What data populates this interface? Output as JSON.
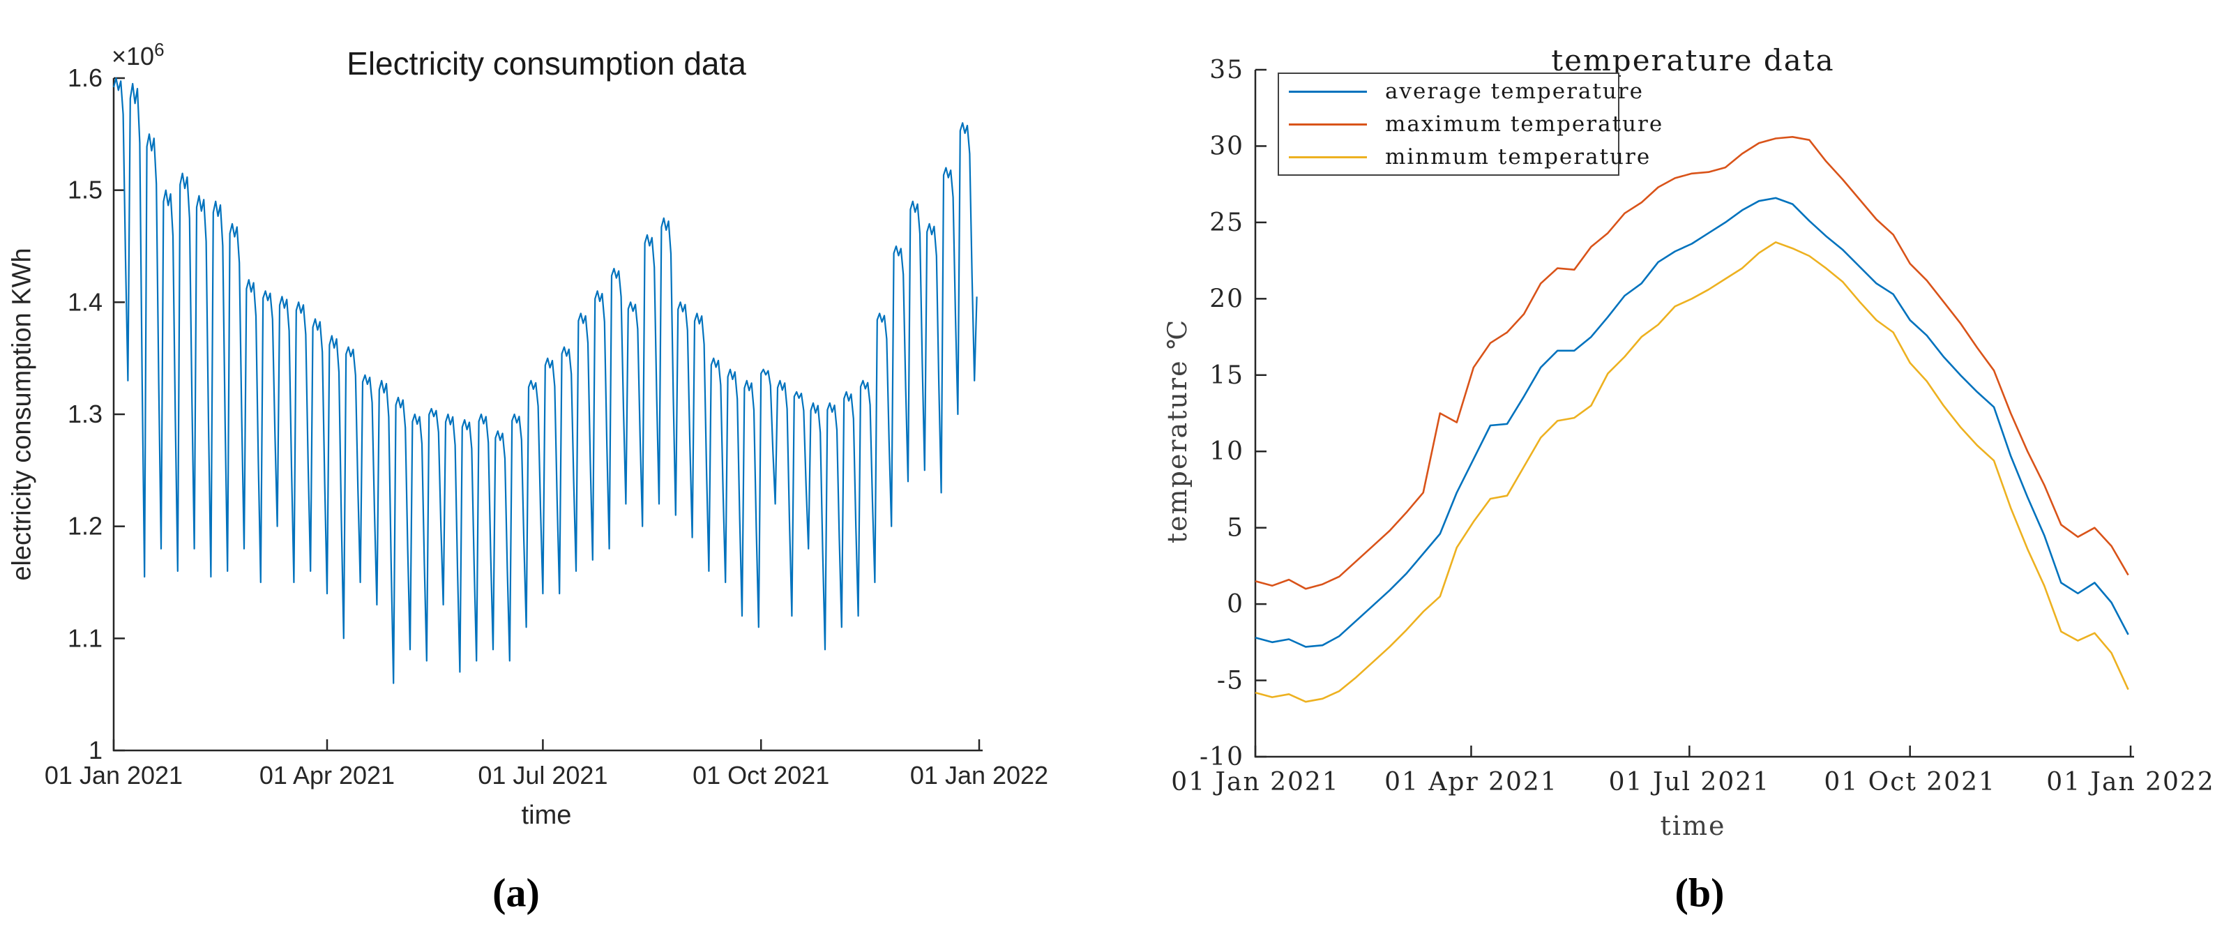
{
  "captions": {
    "a": "(a)",
    "b": "(b)"
  },
  "chart_data": [
    {
      "type": "line",
      "panel": "a",
      "title": "Electricity consumption data",
      "xlabel": "time",
      "ylabel": "electricity consumption KWh",
      "y_multiplier_base": "×10",
      "y_multiplier_exp": "6",
      "x_tick_labels": [
        "01 Jan 2021",
        "01 Apr 2021",
        "01 Jul 2021",
        "01 Oct 2021",
        "01 Jan 2022"
      ],
      "x_tick_days": [
        0,
        90,
        181,
        273,
        365
      ],
      "x_range_days": 365,
      "y_ticks": [
        1,
        1.1,
        1.2,
        1.3,
        1.4,
        1.5,
        1.6
      ],
      "y_tick_labels": [
        "1",
        "1.1",
        "1.2",
        "1.3",
        "1.4",
        "1.5",
        "1.6"
      ],
      "ylim": [
        1.0,
        1.6
      ],
      "y_unit_scale": "1e6 KWh",
      "grid": false,
      "legend": false,
      "axis_color": "#262626",
      "series": [
        {
          "name": "electricity consumption",
          "color": "#0072BD",
          "sampling": "daily, expanded from weekly weekday-peak / weekend-dip pattern",
          "intraweek_profile": [
            0.97,
            1.0,
            0.96,
            0.99,
            0.88,
            0.4,
            0.0
          ],
          "weekly_tops": [
            1.6,
            1.595,
            1.55,
            1.5,
            1.515,
            1.495,
            1.49,
            1.47,
            1.42,
            1.41,
            1.405,
            1.4,
            1.385,
            1.37,
            1.36,
            1.335,
            1.33,
            1.315,
            1.3,
            1.305,
            1.3,
            1.295,
            1.3,
            1.285,
            1.3,
            1.33,
            1.35,
            1.36,
            1.39,
            1.41,
            1.43,
            1.4,
            1.46,
            1.475,
            1.4,
            1.39,
            1.35,
            1.34,
            1.33,
            1.34,
            1.33,
            1.32,
            1.31,
            1.31,
            1.32,
            1.33,
            1.39,
            1.45,
            1.49,
            1.47,
            1.52,
            1.56
          ],
          "weekly_dips": [
            1.33,
            1.155,
            1.18,
            1.16,
            1.18,
            1.155,
            1.16,
            1.18,
            1.15,
            1.2,
            1.15,
            1.16,
            1.14,
            1.1,
            1.15,
            1.13,
            1.06,
            1.09,
            1.08,
            1.13,
            1.07,
            1.08,
            1.09,
            1.08,
            1.11,
            1.14,
            1.14,
            1.16,
            1.17,
            1.18,
            1.22,
            1.2,
            1.22,
            1.21,
            1.19,
            1.16,
            1.15,
            1.12,
            1.11,
            1.22,
            1.12,
            1.18,
            1.09,
            1.11,
            1.12,
            1.15,
            1.2,
            1.24,
            1.25,
            1.23,
            1.3,
            1.33
          ],
          "final_value": 1.405
        }
      ]
    },
    {
      "type": "line",
      "panel": "b",
      "title": "temperature data",
      "xlabel": "time",
      "ylabel": "temperature ℃",
      "x_tick_labels": [
        "01 Jan 2021",
        "01 Apr 2021",
        "01 Jul 2021",
        "01 Oct 2021",
        "01 Jan 2022"
      ],
      "x_tick_days": [
        0,
        90,
        181,
        273,
        365
      ],
      "x_range_days": 365,
      "y_ticks": [
        -10,
        -5,
        0,
        5,
        10,
        15,
        20,
        25,
        30,
        35
      ],
      "y_tick_labels": [
        "-10",
        "-5",
        "0",
        "5",
        "10",
        "15",
        "20",
        "25",
        "30",
        "35"
      ],
      "ylim": [
        -10,
        35
      ],
      "grid": false,
      "legend_position": "top-left",
      "axis_color": "#262626",
      "sample_interval_days": 7,
      "series": [
        {
          "name": "average temperature",
          "color": "#0072BD",
          "weekly_values": [
            -2.2,
            -2.5,
            -2.3,
            -2.8,
            -2.7,
            -2.1,
            -1.1,
            -0.1,
            0.9,
            2.0,
            3.3,
            4.6,
            7.3,
            9.5,
            11.7,
            11.8,
            13.6,
            15.5,
            16.6,
            16.6,
            17.5,
            18.8,
            20.2,
            21.0,
            22.4,
            23.1,
            23.6,
            24.3,
            25.0,
            25.8,
            26.4,
            26.6,
            26.2,
            25.1,
            24.1,
            23.2,
            22.1,
            21.0,
            20.3,
            18.6,
            17.6,
            16.2,
            15.0,
            13.9,
            12.9,
            9.7,
            7.0,
            4.5,
            1.4,
            0.7,
            1.4,
            0.1,
            -2.0
          ]
        },
        {
          "name": "maximum temperature",
          "color": "#D95319",
          "weekly_values": [
            1.5,
            1.2,
            1.6,
            1.0,
            1.3,
            1.8,
            2.8,
            3.8,
            4.8,
            6.0,
            7.3,
            12.5,
            11.9,
            15.5,
            17.1,
            17.8,
            19.0,
            21.0,
            22.0,
            21.9,
            23.4,
            24.3,
            25.6,
            26.3,
            27.3,
            27.9,
            28.2,
            28.3,
            28.6,
            29.5,
            30.2,
            30.5,
            30.6,
            30.4,
            29.0,
            27.8,
            26.5,
            25.2,
            24.2,
            22.3,
            21.2,
            19.8,
            18.4,
            16.8,
            15.3,
            12.5,
            10.0,
            7.8,
            5.2,
            4.4,
            5.0,
            3.8,
            1.9
          ]
        },
        {
          "name": "minmum temperature",
          "color": "#EDB120",
          "weekly_values": [
            -5.8,
            -6.1,
            -5.9,
            -6.4,
            -6.2,
            -5.7,
            -4.8,
            -3.8,
            -2.8,
            -1.7,
            -0.5,
            0.5,
            3.7,
            5.4,
            6.9,
            7.1,
            9.0,
            10.9,
            12.0,
            12.2,
            13.0,
            15.1,
            16.2,
            17.5,
            18.3,
            19.5,
            20.0,
            20.6,
            21.3,
            22.0,
            23.0,
            23.7,
            23.3,
            22.8,
            22.0,
            21.1,
            19.8,
            18.6,
            17.8,
            15.8,
            14.6,
            13.0,
            11.6,
            10.4,
            9.4,
            6.3,
            3.6,
            1.2,
            -1.8,
            -2.4,
            -1.9,
            -3.2,
            -5.6
          ]
        }
      ]
    }
  ]
}
